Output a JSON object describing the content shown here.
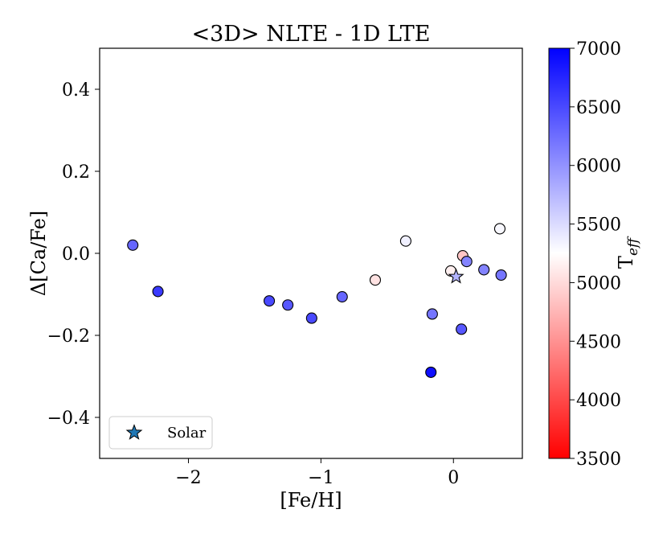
{
  "chart_data": {
    "type": "scatter",
    "title": "<3D> NLTE - 1D LTE",
    "xlabel": "[Fe/H]",
    "ylabel": "Δ[Ca/Fe]",
    "xlim": [
      -2.67,
      0.52
    ],
    "ylim": [
      -0.5,
      0.5
    ],
    "xticks": [
      -2,
      -1,
      0
    ],
    "xtick_labels": [
      "−2",
      "−1",
      "0"
    ],
    "yticks": [
      -0.4,
      -0.2,
      0.0,
      0.2,
      0.4
    ],
    "ytick_labels": [
      "−0.4",
      "−0.2",
      "0.0",
      "0.2",
      "0.4"
    ],
    "grid": false,
    "colorbar": {
      "label_main": "T",
      "label_sub": "eff",
      "range": [
        3500,
        7000
      ],
      "ticks": [
        3500,
        4000,
        4500,
        5000,
        5500,
        6000,
        6500,
        7000
      ],
      "tick_labels": [
        "3500",
        "4000",
        "4500",
        "5000",
        "5500",
        "6000",
        "6500",
        "7000"
      ],
      "colormap": "bwr_r",
      "colors": {
        "low": "#ff0000",
        "mid": "#ffffff",
        "high": "#0000ff"
      }
    },
    "points": [
      {
        "x": -2.42,
        "y": 0.02,
        "teff": 6300
      },
      {
        "x": -2.23,
        "y": -0.093,
        "teff": 6600
      },
      {
        "x": -1.39,
        "y": -0.116,
        "teff": 6500
      },
      {
        "x": -1.25,
        "y": -0.126,
        "teff": 6400
      },
      {
        "x": -1.07,
        "y": -0.158,
        "teff": 6500
      },
      {
        "x": -0.84,
        "y": -0.106,
        "teff": 6300
      },
      {
        "x": -0.59,
        "y": -0.065,
        "teff": 5050
      },
      {
        "x": -0.36,
        "y": 0.03,
        "teff": 5350
      },
      {
        "x": -0.16,
        "y": -0.148,
        "teff": 6200
      },
      {
        "x": -0.17,
        "y": -0.29,
        "teff": 6900
      },
      {
        "x": -0.02,
        "y": -0.043,
        "teff": 5150
      },
      {
        "x": 0.06,
        "y": -0.185,
        "teff": 6400
      },
      {
        "x": 0.07,
        "y": -0.006,
        "teff": 4850
      },
      {
        "x": 0.1,
        "y": -0.02,
        "teff": 6100
      },
      {
        "x": 0.23,
        "y": -0.04,
        "teff": 6100
      },
      {
        "x": 0.35,
        "y": 0.06,
        "teff": 5300
      },
      {
        "x": 0.36,
        "y": -0.053,
        "teff": 6200
      }
    ],
    "solar": {
      "x": 0.02,
      "y": -0.057,
      "teff": 5772,
      "color": "#1f77b4"
    },
    "legend": {
      "location": "lower left",
      "entries": [
        "Solar"
      ]
    }
  }
}
